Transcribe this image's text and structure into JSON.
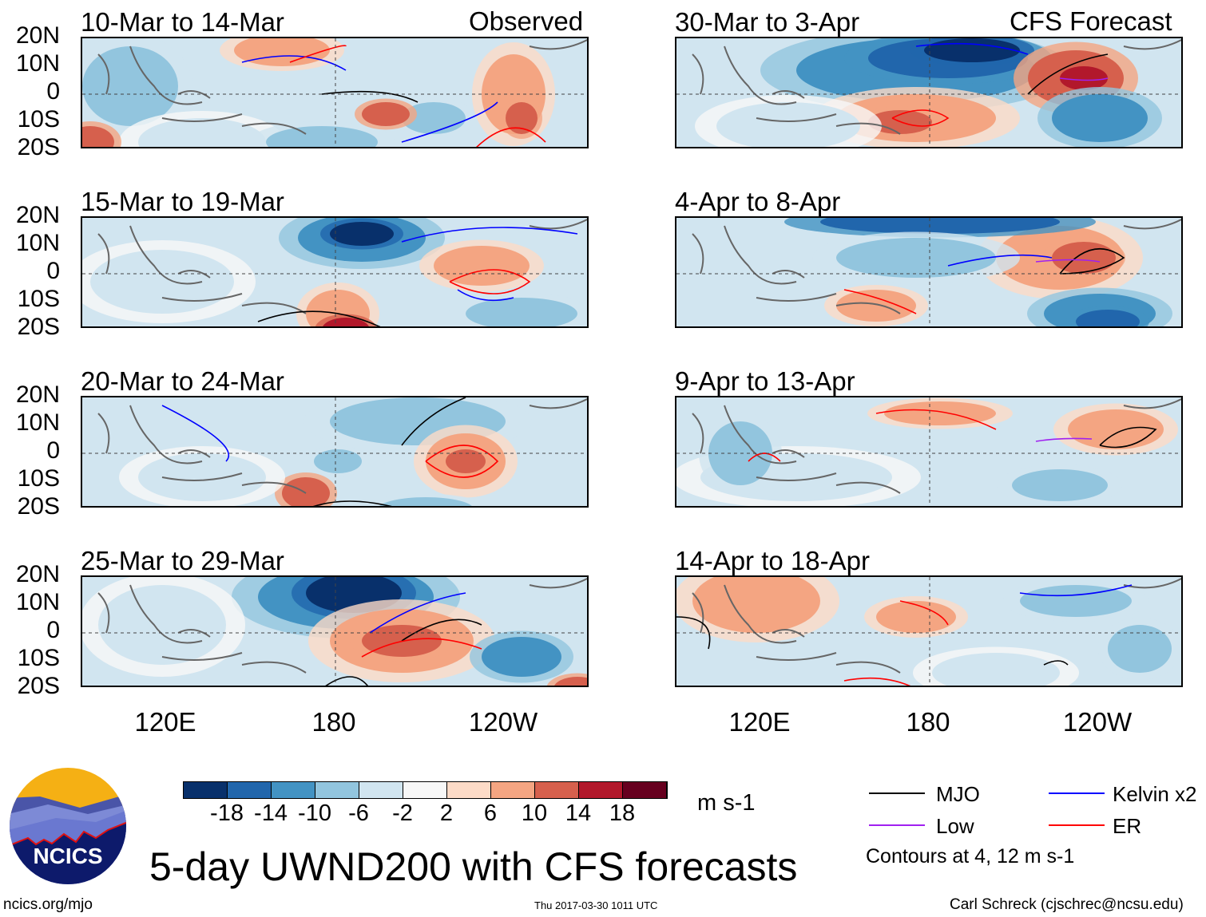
{
  "left_header": "Observed",
  "right_header": "CFS Forecast",
  "left_panels": [
    {
      "title": "10-Mar to 14-Mar"
    },
    {
      "title": "15-Mar to 19-Mar"
    },
    {
      "title": "20-Mar to 24-Mar"
    },
    {
      "title": "25-Mar to 29-Mar"
    }
  ],
  "right_panels": [
    {
      "title": "30-Mar to 3-Apr"
    },
    {
      "title": "4-Apr to 8-Apr"
    },
    {
      "title": "9-Apr to 13-Apr"
    },
    {
      "title": "14-Apr to 18-Apr"
    }
  ],
  "lat_labels": [
    "20N",
    "10N",
    "0",
    "10S",
    "20S"
  ],
  "lon_labels": [
    "120E",
    "180",
    "120W"
  ],
  "colorbar": {
    "labels": [
      "-18",
      "-14",
      "-10",
      "-6",
      "-2",
      "2",
      "6",
      "10",
      "14",
      "18"
    ],
    "colors": [
      "#08306b",
      "#2166ac",
      "#4393c3",
      "#92c5de",
      "#d1e5f0",
      "#f7f7f7",
      "#fddbc7",
      "#f4a582",
      "#d6604d",
      "#b2182b",
      "#67001f"
    ],
    "units": "m s-1"
  },
  "legend": {
    "items": [
      {
        "label": "MJO",
        "color": "#000000"
      },
      {
        "label": "Kelvin x2",
        "color": "#0000ff"
      },
      {
        "label": "Low",
        "color": "#a020f0"
      },
      {
        "label": "ER",
        "color": "#ff0000"
      }
    ],
    "note": "Contours at 4, 12 m s-1"
  },
  "logo": {
    "text": "NCICS"
  },
  "title": "5-day UWND200 with CFS forecasts",
  "footer": {
    "url": "ncics.org/mjo",
    "timestamp": "Thu 2017-03-30 1011 UTC",
    "credit": "Carl Schreck (cjschrec@ncsu.edu)"
  }
}
